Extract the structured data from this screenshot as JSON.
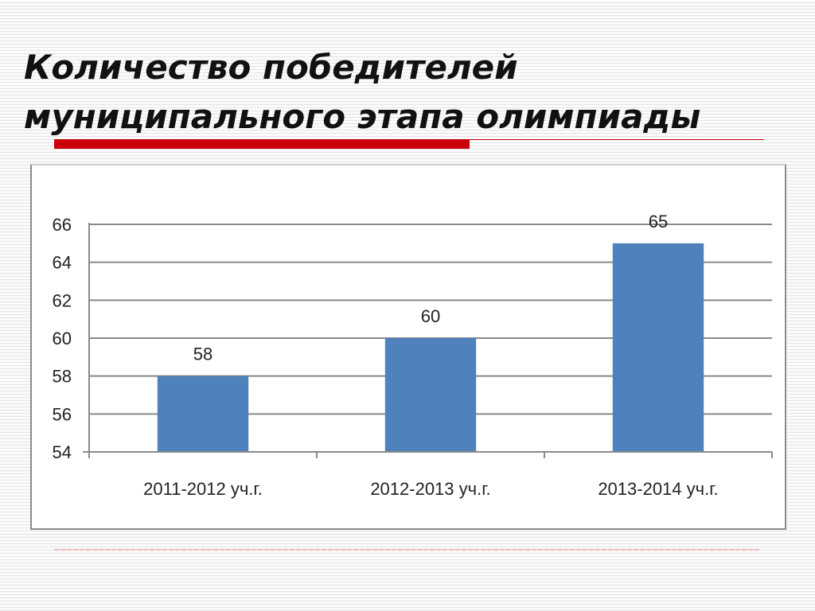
{
  "slide": {
    "title_line1": "Количество победителей",
    "title_line2": "муниципального этапа олимпиады"
  },
  "colors": {
    "accent_red": "#c8000a",
    "bar": "#4f81bd",
    "grid": "#8a8a8a",
    "text": "#222222"
  },
  "chart_data": {
    "type": "bar",
    "title": "",
    "xlabel": "",
    "ylabel": "",
    "categories": [
      "2011-2012 уч.г.",
      "2012-2013 уч.г.",
      "2013-2014 уч.г."
    ],
    "values": [
      58,
      60,
      65
    ],
    "data_labels": [
      "58",
      "60",
      "65"
    ],
    "ylim": [
      54,
      66
    ],
    "yticks": [
      54,
      56,
      58,
      60,
      62,
      64,
      66
    ],
    "grid": true,
    "legend": "none"
  }
}
